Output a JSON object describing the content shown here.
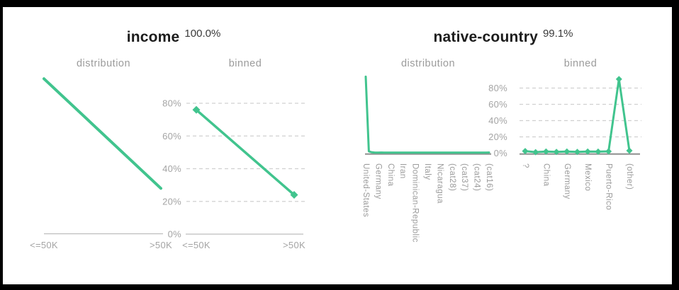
{
  "colors": {
    "accent": "#41C48E",
    "title_text": "#1C1C1C",
    "coverage_text": "#3A3A3A",
    "subtitle_text": "#9B9B9B",
    "tick_text": "#A4A4A4",
    "grid_line": "#D0D0D0",
    "axis_light": "#BDBDBD",
    "axis_dark": "#8F8F8F",
    "frame": "#000000",
    "background": "#FFFFFF"
  },
  "panels": [
    {
      "title": "income",
      "coverage_pct": "100.0%"
    },
    {
      "title": "native-country",
      "coverage_pct": "99.1%"
    }
  ],
  "chart_data": [
    {
      "feature": "income",
      "subtitle": "distribution",
      "type": "line",
      "categories": [
        "<=50K",
        ">50K"
      ],
      "values": [
        95,
        28
      ],
      "ylim": [
        0,
        100
      ],
      "grid": false,
      "markers": false,
      "legend": "none"
    },
    {
      "feature": "income",
      "subtitle": "binned",
      "type": "line",
      "categories": [
        "<=50K",
        ">50K"
      ],
      "values": [
        76,
        24
      ],
      "y_ticks": [
        "80%",
        "60%",
        "40%",
        "20%",
        "0%"
      ],
      "ylim": [
        0,
        100
      ],
      "grid": true,
      "markers": true,
      "legend": "none"
    },
    {
      "feature": "native-country",
      "subtitle": "distribution",
      "type": "line",
      "n_points": 41,
      "tick_labels": [
        "United-States",
        "Germany",
        "China",
        "Iran",
        "Dominican-Republic",
        "Italy",
        "Nicaragua",
        "(cat28)",
        "(cat37)",
        "(cat24)",
        "(cat16)"
      ],
      "tick_every": 4,
      "values": [
        94,
        2.2,
        1,
        0.7,
        0.7,
        0.8,
        0.7,
        0.7,
        0.7,
        0.7,
        0.7,
        0.7,
        0.7,
        0.7,
        0.7,
        0.7,
        0.7,
        0.7,
        0.7,
        0.7,
        0.7,
        0.7,
        0.7,
        0.7,
        0.7,
        0.7,
        0.7,
        0.7,
        0.7,
        0.7,
        0.7,
        0.7,
        0.7,
        0.7,
        0.7,
        0.7,
        0.7,
        0.7,
        0.7,
        0.7,
        0.8
      ],
      "ylim": [
        0,
        100
      ],
      "grid": false,
      "markers": false,
      "legend": "none"
    },
    {
      "feature": "native-country",
      "subtitle": "binned",
      "type": "line",
      "n_points": 11,
      "tick_labels": [
        "?",
        "China",
        "Germany",
        "Mexico",
        "Puerto-Rico",
        "(other)"
      ],
      "tick_every": 2,
      "values": [
        2.5,
        1.2,
        2,
        1.5,
        2,
        1.5,
        2,
        1.8,
        2.2,
        91,
        3
      ],
      "y_ticks": [
        "80%",
        "60%",
        "40%",
        "20%",
        "0%"
      ],
      "ylim": [
        0,
        100
      ],
      "grid": true,
      "markers": true,
      "legend": "none"
    }
  ]
}
